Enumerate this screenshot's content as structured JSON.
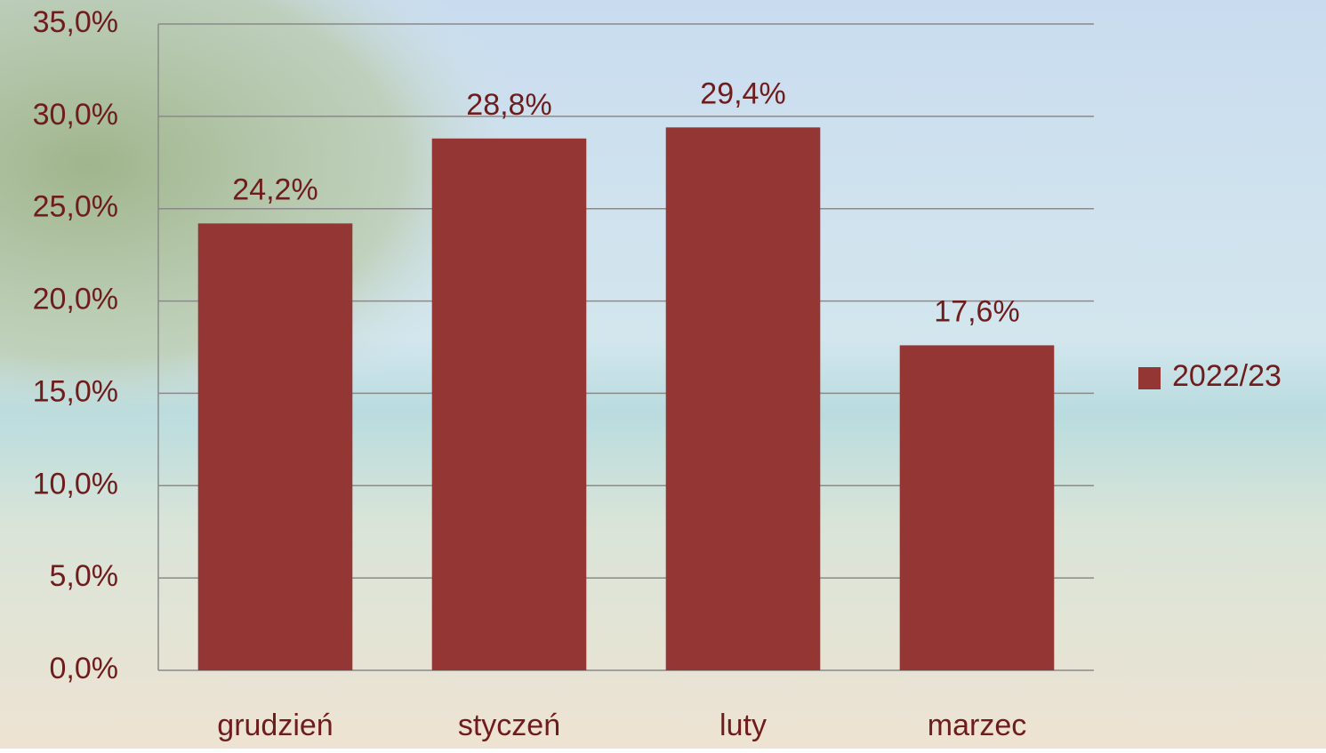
{
  "chart_data": {
    "type": "bar",
    "categories": [
      "grudzień",
      "styczeń",
      "luty",
      "marzec"
    ],
    "series": [
      {
        "name": "2022/23",
        "color": "#943634",
        "values": [
          24.2,
          28.8,
          29.4,
          17.6
        ],
        "value_labels": [
          "24,2%",
          "28,8%",
          "29,4%",
          "17,6%"
        ]
      }
    ],
    "ylim": [
      0,
      35
    ],
    "yticks": [
      {
        "value": 0,
        "label": "0,0%"
      },
      {
        "value": 5,
        "label": "5,0%"
      },
      {
        "value": 10,
        "label": "10,0%"
      },
      {
        "value": 15,
        "label": "15,0%"
      },
      {
        "value": 20,
        "label": "20,0%"
      },
      {
        "value": 25,
        "label": "25,0%"
      },
      {
        "value": 30,
        "label": "30,0%"
      },
      {
        "value": 35,
        "label": "35,0%"
      }
    ],
    "grid": true,
    "legend": "right"
  }
}
